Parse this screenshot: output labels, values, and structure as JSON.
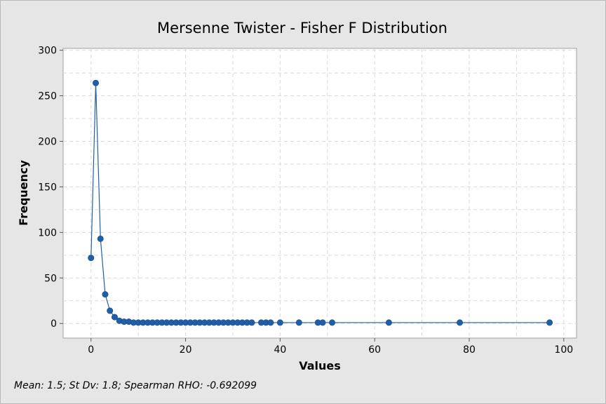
{
  "chart_data": {
    "type": "line",
    "title": "Mersenne Twister - Fisher F Distribution",
    "xlabel": "Values",
    "ylabel": "Frequency",
    "xlim": [
      -5.9,
      102.7
    ],
    "ylim": [
      -16,
      302
    ],
    "xticks": [
      0,
      20,
      40,
      60,
      80,
      100
    ],
    "yticks": [
      0,
      50,
      100,
      150,
      200,
      250,
      300
    ],
    "grid": true,
    "markers": true,
    "series": [
      {
        "color": "#1f5fa8",
        "x": [
          0,
          1,
          2,
          3,
          4,
          5,
          6,
          7,
          8,
          9,
          10,
          11,
          12,
          13,
          14,
          15,
          16,
          17,
          18,
          19,
          20,
          21,
          22,
          23,
          24,
          25,
          26,
          27,
          28,
          29,
          30,
          31,
          32,
          33,
          34,
          36,
          37,
          38,
          40,
          44,
          48,
          49,
          51,
          63,
          78,
          97
        ],
        "y": [
          72,
          264,
          93,
          32,
          14,
          7,
          3,
          2,
          2,
          1,
          1,
          1,
          1,
          1,
          1,
          1,
          1,
          1,
          1,
          1,
          1,
          1,
          1,
          1,
          1,
          1,
          1,
          1,
          1,
          1,
          1,
          1,
          1,
          1,
          1,
          1,
          1,
          1,
          1,
          1,
          1,
          1,
          1,
          1,
          1,
          1
        ]
      }
    ]
  },
  "footnote": "Mean: 1.5; St Dv: 1.8; Spearman RHO: -0.692099",
  "colors": {
    "plot_background": "#ffffff",
    "outer_background": "#e6e6e6",
    "grid": "#d9d9d9",
    "series": "#1f5fa8"
  }
}
